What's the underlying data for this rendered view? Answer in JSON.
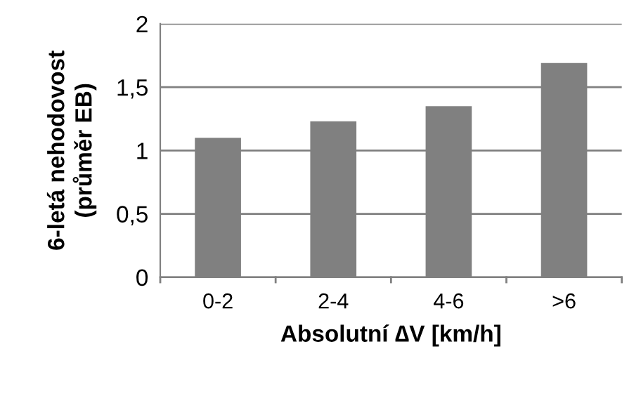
{
  "chart_data": {
    "type": "bar",
    "xlabel": "Absolutní ∆V [km/h]",
    "ylabel": "6-letá nehodovost\n(průměr EB)",
    "categories": [
      "0-2",
      "2-4",
      "4-6",
      ">6"
    ],
    "values": [
      1.1,
      1.23,
      1.35,
      1.69
    ],
    "color": "#808080",
    "ylim": [
      0,
      2
    ],
    "yticks": [
      0,
      {
        "value": 0.5,
        "label": "0,5"
      },
      1,
      {
        "value": 1.5,
        "label": "1,5"
      },
      2
    ],
    "grid": "y",
    "legend": false
  }
}
